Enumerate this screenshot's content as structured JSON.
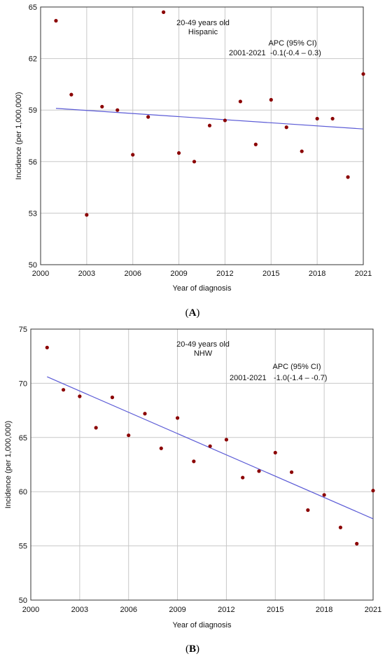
{
  "chart_data": [
    {
      "type": "scatter",
      "panel_label": "(A)",
      "xlabel": "Year of diagnosis",
      "ylabel": "Incidence (per 1,000,000)",
      "xlim": [
        2000,
        2021
      ],
      "ylim": [
        50,
        65
      ],
      "xticks": [
        2000,
        2003,
        2006,
        2009,
        2012,
        2015,
        2018,
        2021
      ],
      "yticks": [
        50,
        53,
        56,
        59,
        62,
        65
      ],
      "grid": "horizontal and vertical",
      "annotation": {
        "group_line1": "20-49 years old",
        "group_line2": "Hispanic",
        "period": "2001-2021",
        "apc_header": "APC (95% CI)",
        "apc_value": "-0.1(-0.4 – 0.3)"
      },
      "points": {
        "x": [
          2001,
          2002,
          2003,
          2004,
          2005,
          2006,
          2007,
          2008,
          2009,
          2010,
          2011,
          2012,
          2013,
          2014,
          2015,
          2016,
          2017,
          2018,
          2019,
          2020,
          2021
        ],
        "y": [
          64.2,
          59.9,
          52.9,
          59.2,
          59.0,
          56.4,
          58.6,
          64.7,
          56.5,
          56.0,
          58.1,
          58.4,
          59.5,
          57.0,
          59.6,
          58.0,
          56.6,
          58.5,
          58.5,
          55.1,
          61.1
        ]
      },
      "trend": {
        "x": [
          2001,
          2021
        ],
        "y": [
          59.1,
          57.9
        ]
      },
      "colors": {
        "points": "#8b0000",
        "trend": "#5b5bd6",
        "grid": "#c8c8c8"
      }
    },
    {
      "type": "scatter",
      "panel_label": "(B)",
      "xlabel": "Year of diagnosis",
      "ylabel": "Incidence (per 1,000,000)",
      "xlim": [
        2000,
        2021
      ],
      "ylim": [
        50,
        75
      ],
      "xticks": [
        2000,
        2003,
        2006,
        2009,
        2012,
        2015,
        2018,
        2021
      ],
      "yticks": [
        50,
        55,
        60,
        65,
        70,
        75
      ],
      "grid": "horizontal and vertical",
      "annotation": {
        "group_line1": "20-49 years old",
        "group_line2": "NHW",
        "period": "2001-2021",
        "apc_header": "APC (95% CI)",
        "apc_value": "-1.0(-1.4 – -0.7)"
      },
      "points": {
        "x": [
          2001,
          2002,
          2003,
          2004,
          2005,
          2006,
          2007,
          2008,
          2009,
          2010,
          2011,
          2012,
          2013,
          2014,
          2015,
          2016,
          2017,
          2018,
          2019,
          2020,
          2021
        ],
        "y": [
          73.3,
          69.4,
          68.8,
          65.9,
          68.7,
          65.2,
          67.2,
          64.0,
          66.8,
          62.8,
          64.2,
          64.8,
          61.3,
          61.9,
          63.6,
          61.8,
          58.3,
          59.7,
          56.7,
          55.2,
          60.1
        ]
      },
      "trend": {
        "x": [
          2001,
          2021
        ],
        "y": [
          70.6,
          57.5
        ]
      },
      "colors": {
        "points": "#8b0000",
        "trend": "#5b5bd6",
        "grid": "#c8c8c8"
      }
    }
  ]
}
